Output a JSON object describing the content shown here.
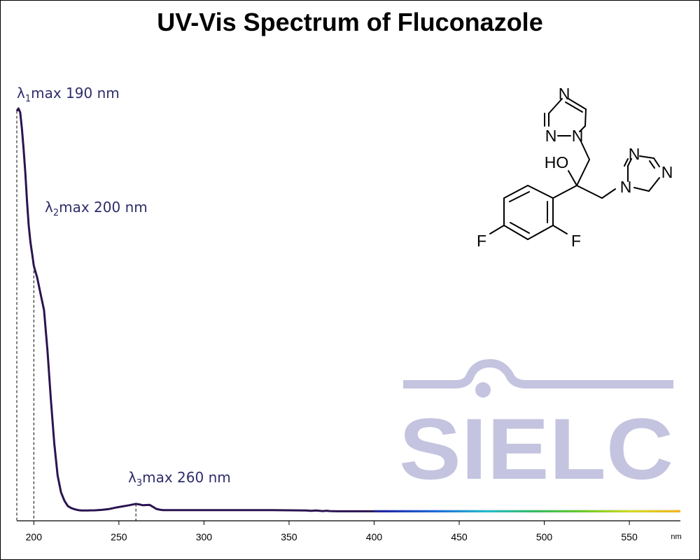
{
  "chart_data": {
    "type": "line",
    "title": "UV-Vis Spectrum of Fluconazole",
    "xlabel": "nm",
    "ylabel": "",
    "xlim": [
      190,
      580
    ],
    "ylim": [
      0,
      1
    ],
    "xticks": [
      200,
      250,
      300,
      350,
      400,
      450,
      500,
      550
    ],
    "grid": false,
    "series": [
      {
        "x": [
          190,
          191,
          192,
          193,
          194,
          195,
          196,
          197,
          198,
          199,
          200,
          202,
          204,
          206,
          208,
          210,
          212,
          214,
          216,
          218,
          220,
          222,
          224,
          226,
          228,
          232,
          236,
          240,
          244,
          248,
          252,
          256,
          260,
          262,
          264,
          266,
          268,
          270,
          272,
          274,
          276,
          280,
          300,
          320,
          340,
          360,
          363,
          366,
          368,
          370,
          372,
          374,
          378,
          400,
          450,
          500,
          550,
          580
        ],
        "y": [
          0.994,
          1.0,
          0.99,
          0.95,
          0.9,
          0.84,
          0.77,
          0.71,
          0.67,
          0.64,
          0.61,
          0.58,
          0.54,
          0.5,
          0.4,
          0.28,
          0.17,
          0.09,
          0.048,
          0.027,
          0.014,
          0.009,
          0.006,
          0.004,
          0.003,
          0.0032,
          0.0035,
          0.0045,
          0.0065,
          0.01,
          0.013,
          0.016,
          0.0195,
          0.018,
          0.016,
          0.0165,
          0.017,
          0.012,
          0.007,
          0.005,
          0.004,
          0.004,
          0.004,
          0.004,
          0.004,
          0.003,
          0.002,
          0.003,
          0.002,
          0.0015,
          0.0025,
          0.0015,
          0.001,
          0.001,
          0.001,
          0.001,
          0.001,
          0.001
        ]
      }
    ],
    "annotations": [
      {
        "label": "λ",
        "sub": "1",
        "rest": "max  190 nm",
        "x": 190
      },
      {
        "label": "λ",
        "sub": "2",
        "rest": "max  200 nm",
        "x": 200
      },
      {
        "label": "λ",
        "sub": "3",
        "rest": "max  260 nm",
        "x": 260
      }
    ],
    "visible_spectrum_gradient": {
      "start_nm": 380,
      "end_nm": 580,
      "colors": [
        "#28225e",
        "#1b2bb0",
        "#1a6fe0",
        "#20c0d0",
        "#30c060",
        "#6ad020",
        "#d8e020",
        "#f8b818"
      ]
    },
    "line_color": "#2a1450"
  },
  "structure": {
    "name_labels": {
      "n_top": "N",
      "n_left_low": "N",
      "n_left_ring_link": "N",
      "ho": "HO",
      "n_right_top": "N",
      "n_right_far": "N",
      "n_right_link": "N",
      "f_left": "F",
      "f_right": "F"
    }
  },
  "logo": {
    "text": "SIELC",
    "color": "#c4c4e0"
  }
}
